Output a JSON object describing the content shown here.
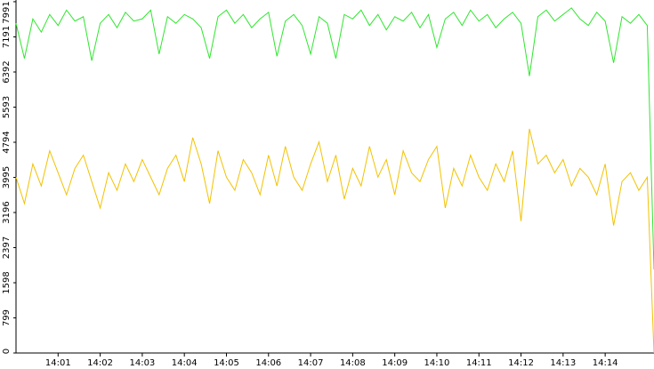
{
  "chart_data": {
    "type": "line",
    "xlim": [
      0,
      15.16
    ],
    "xticks": [
      {
        "value": 1,
        "label": "14:01"
      },
      {
        "value": 2,
        "label": "14:02"
      },
      {
        "value": 3,
        "label": "14:03"
      },
      {
        "value": 4,
        "label": "14:04"
      },
      {
        "value": 5,
        "label": "14:05"
      },
      {
        "value": 6,
        "label": "14:06"
      },
      {
        "value": 7,
        "label": "14:07"
      },
      {
        "value": 8,
        "label": "14:08"
      },
      {
        "value": 9,
        "label": "14:09"
      },
      {
        "value": 10,
        "label": "14:10"
      },
      {
        "value": 11,
        "label": "14:11"
      },
      {
        "value": 12,
        "label": "14:12"
      },
      {
        "value": 13,
        "label": "14:13"
      },
      {
        "value": 14,
        "label": "14:14"
      }
    ],
    "ylim": [
      0,
      8030
    ],
    "yticks": [
      0,
      799,
      1598,
      2397,
      3196,
      3995,
      4794,
      5593,
      6392,
      7191,
      7991
    ],
    "x": [
      0,
      0.2,
      0.4,
      0.6,
      0.8,
      1.0,
      1.2,
      1.4,
      1.6,
      1.8,
      2.0,
      2.2,
      2.4,
      2.6,
      2.8,
      3.0,
      3.2,
      3.4,
      3.6,
      3.8,
      4.0,
      4.2,
      4.4,
      4.6,
      4.8,
      5.0,
      5.2,
      5.4,
      5.6,
      5.8,
      6.0,
      6.2,
      6.4,
      6.6,
      6.8,
      7.0,
      7.2,
      7.4,
      7.6,
      7.8,
      8.0,
      8.2,
      8.4,
      8.6,
      8.8,
      9.0,
      9.2,
      9.4,
      9.6,
      9.8,
      10.0,
      10.2,
      10.4,
      10.6,
      10.8,
      11.0,
      11.2,
      11.4,
      11.6,
      11.8,
      12.0,
      12.2,
      12.4,
      12.6,
      12.8,
      13.0,
      13.2,
      13.4,
      13.6,
      13.8,
      14.0,
      14.2,
      14.4,
      14.6,
      14.8,
      15.0,
      15.16
    ],
    "series": [
      {
        "color": "#2ee62e",
        "values": [
          7500,
          6700,
          7600,
          7300,
          7700,
          7450,
          7800,
          7550,
          7650,
          6650,
          7500,
          7700,
          7400,
          7750,
          7550,
          7600,
          7800,
          6800,
          7650,
          7500,
          7700,
          7600,
          7400,
          6700,
          7650,
          7800,
          7500,
          7700,
          7400,
          7600,
          7750,
          6750,
          7550,
          7700,
          7450,
          6800,
          7650,
          7500,
          6700,
          7700,
          7600,
          7800,
          7450,
          7700,
          7350,
          7650,
          7550,
          7750,
          7400,
          7700,
          6950,
          7600,
          7750,
          7450,
          7800,
          7550,
          7700,
          7400,
          7600,
          7750,
          7500,
          6300,
          7650,
          7800,
          7550,
          7700,
          7850,
          7600,
          7450,
          7750,
          7550,
          6600,
          7650,
          7500,
          7700,
          7450,
          1900
        ]
      },
      {
        "color": "#f2c200",
        "values": [
          4000,
          3400,
          4300,
          3800,
          4600,
          4100,
          3600,
          4200,
          4500,
          3900,
          3300,
          4100,
          3700,
          4300,
          3900,
          4400,
          4000,
          3600,
          4200,
          4500,
          3900,
          4900,
          4300,
          3400,
          4600,
          4000,
          3700,
          4400,
          4100,
          3600,
          4500,
          3800,
          4700,
          4000,
          3700,
          4300,
          4800,
          3900,
          4500,
          3500,
          4200,
          3800,
          4700,
          4000,
          4400,
          3600,
          4600,
          4100,
          3900,
          4400,
          4700,
          3300,
          4200,
          3800,
          4500,
          4000,
          3700,
          4300,
          3900,
          4600,
          3000,
          5100,
          4300,
          4500,
          4100,
          4400,
          3800,
          4200,
          4000,
          3600,
          4300,
          2900,
          3900,
          4100,
          3700,
          4000,
          0
        ]
      }
    ]
  }
}
